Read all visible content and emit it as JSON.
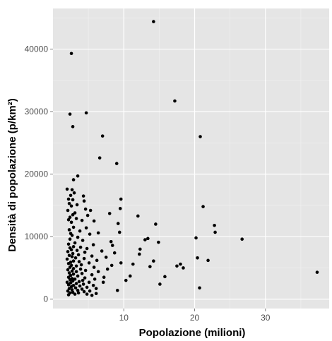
{
  "chart_data": {
    "type": "scatter",
    "xlabel": "Popolazione (milioni)",
    "ylabel": "Densità di popolazione (p/km²)",
    "xlim": [
      0,
      39
    ],
    "ylim": [
      -1500,
      46500
    ],
    "x_ticks": [
      10,
      20,
      30
    ],
    "x_tick_labels": [
      "10",
      "20",
      "30"
    ],
    "y_ticks": [
      0,
      10000,
      20000,
      30000,
      40000
    ],
    "y_tick_labels": [
      "0",
      "10000",
      "20000",
      "30000",
      "40000"
    ],
    "grid": true,
    "colors": {
      "panel": "#e5e5e5",
      "grid": "#ffffff",
      "point": "#000000"
    },
    "points": [
      [
        14.2,
        44400
      ],
      [
        2.6,
        39300
      ],
      [
        17.2,
        31700
      ],
      [
        4.7,
        29800
      ],
      [
        2.4,
        29600
      ],
      [
        2.8,
        27600
      ],
      [
        20.8,
        26000
      ],
      [
        7.0,
        26100
      ],
      [
        6.6,
        22600
      ],
      [
        9.0,
        21700
      ],
      [
        3.5,
        19700
      ],
      [
        2.9,
        19100
      ],
      [
        2.0,
        17600
      ],
      [
        2.7,
        17500
      ],
      [
        3.0,
        17000
      ],
      [
        2.5,
        16600
      ],
      [
        4.3,
        16500
      ],
      [
        2.2,
        16000
      ],
      [
        2.8,
        15900
      ],
      [
        9.6,
        16000
      ],
      [
        4.4,
        15700
      ],
      [
        2.3,
        15300
      ],
      [
        3.4,
        15100
      ],
      [
        2.6,
        14900
      ],
      [
        21.2,
        14800
      ],
      [
        9.5,
        14500
      ],
      [
        4.6,
        14400
      ],
      [
        2.1,
        14200
      ],
      [
        5.3,
        14200
      ],
      [
        3.1,
        13800
      ],
      [
        8.0,
        13700
      ],
      [
        2.8,
        13500
      ],
      [
        4.9,
        13400
      ],
      [
        12.0,
        13300
      ],
      [
        2.4,
        13100
      ],
      [
        3.3,
        12900
      ],
      [
        2.2,
        12700
      ],
      [
        4.1,
        12600
      ],
      [
        5.8,
        12500
      ],
      [
        2.6,
        12300
      ],
      [
        9.2,
        12100
      ],
      [
        14.5,
        12000
      ],
      [
        22.8,
        11800
      ],
      [
        2.9,
        11500
      ],
      [
        4.7,
        11400
      ],
      [
        2.3,
        11100
      ],
      [
        3.8,
        10900
      ],
      [
        22.9,
        10700
      ],
      [
        9.4,
        10700
      ],
      [
        6.4,
        10600
      ],
      [
        2.5,
        10500
      ],
      [
        5.2,
        10400
      ],
      [
        2.7,
        10200
      ],
      [
        3.5,
        9900
      ],
      [
        20.2,
        9800
      ],
      [
        13.4,
        9700
      ],
      [
        26.7,
        9600
      ],
      [
        2.4,
        9600
      ],
      [
        13.0,
        9500
      ],
      [
        4.2,
        9400
      ],
      [
        8.2,
        9200
      ],
      [
        14.9,
        9100
      ],
      [
        3.1,
        9000
      ],
      [
        2.2,
        8800
      ],
      [
        5.7,
        8700
      ],
      [
        8.4,
        8600
      ],
      [
        2.9,
        8400
      ],
      [
        3.9,
        8300
      ],
      [
        2.4,
        8200
      ],
      [
        4.8,
        8100
      ],
      [
        12.3,
        8000
      ],
      [
        2.6,
        7900
      ],
      [
        3.4,
        7800
      ],
      [
        6.9,
        7700
      ],
      [
        2.1,
        7600
      ],
      [
        4.5,
        7500
      ],
      [
        8.7,
        7400
      ],
      [
        2.8,
        7300
      ],
      [
        12.2,
        7200
      ],
      [
        3.6,
        7100
      ],
      [
        2.3,
        7000
      ],
      [
        5.5,
        6900
      ],
      [
        2.7,
        6800
      ],
      [
        7.5,
        6700
      ],
      [
        20.4,
        6600
      ],
      [
        3.2,
        6600
      ],
      [
        4.4,
        6500
      ],
      [
        2.0,
        6400
      ],
      [
        21.9,
        6200
      ],
      [
        6.2,
        6200
      ],
      [
        2.9,
        6100
      ],
      [
        14.2,
        6100
      ],
      [
        3.7,
        6000
      ],
      [
        2.5,
        5900
      ],
      [
        9.6,
        5800
      ],
      [
        5.1,
        5800
      ],
      [
        2.2,
        5700
      ],
      [
        11.3,
        5600
      ],
      [
        18.0,
        5600
      ],
      [
        4.0,
        5500
      ],
      [
        2.6,
        5400
      ],
      [
        8.3,
        5400
      ],
      [
        17.5,
        5300
      ],
      [
        3.3,
        5300
      ],
      [
        13.7,
        5200
      ],
      [
        2.4,
        5100
      ],
      [
        5.8,
        5100
      ],
      [
        18.4,
        5000
      ],
      [
        2.9,
        4900
      ],
      [
        3.9,
        4800
      ],
      [
        7.7,
        4800
      ],
      [
        2.1,
        4700
      ],
      [
        4.6,
        4600
      ],
      [
        2.7,
        4500
      ],
      [
        3.3,
        4400
      ],
      [
        6.4,
        4400
      ],
      [
        37.3,
        4300
      ],
      [
        2.3,
        4200
      ],
      [
        4.1,
        4100
      ],
      [
        2.9,
        4000
      ],
      [
        5.5,
        3900
      ],
      [
        2.5,
        3800
      ],
      [
        10.9,
        3700
      ],
      [
        3.5,
        3700
      ],
      [
        15.8,
        3600
      ],
      [
        2.2,
        3500
      ],
      [
        7.2,
        3500
      ],
      [
        4.5,
        3400
      ],
      [
        2.7,
        3300
      ],
      [
        3.1,
        3200
      ],
      [
        5.9,
        3200
      ],
      [
        2.4,
        3100
      ],
      [
        10.3,
        3000
      ],
      [
        4.2,
        3000
      ],
      [
        2.8,
        2900
      ],
      [
        3.7,
        2800
      ],
      [
        2.0,
        2700
      ],
      [
        7.1,
        2700
      ],
      [
        5.1,
        2700
      ],
      [
        2.5,
        2600
      ],
      [
        3.3,
        2500
      ],
      [
        4.3,
        2400
      ],
      [
        15.1,
        2400
      ],
      [
        2.2,
        2300
      ],
      [
        2.9,
        2200
      ],
      [
        5.7,
        2200
      ],
      [
        3.8,
        2100
      ],
      [
        2.6,
        2000
      ],
      [
        4.8,
        1900
      ],
      [
        20.7,
        1800
      ],
      [
        3.2,
        1800
      ],
      [
        2.3,
        1700
      ],
      [
        6.1,
        1700
      ],
      [
        4.1,
        1600
      ],
      [
        2.7,
        1500
      ],
      [
        9.1,
        1400
      ],
      [
        3.5,
        1400
      ],
      [
        2.1,
        1300
      ],
      [
        5.2,
        1300
      ],
      [
        4.4,
        1200
      ],
      [
        2.8,
        1100
      ],
      [
        3.6,
        1000
      ],
      [
        2.4,
        1000
      ],
      [
        6.1,
        900
      ],
      [
        4.8,
        800
      ],
      [
        3.1,
        800
      ],
      [
        2.2,
        700
      ],
      [
        5.5,
        600
      ]
    ]
  }
}
